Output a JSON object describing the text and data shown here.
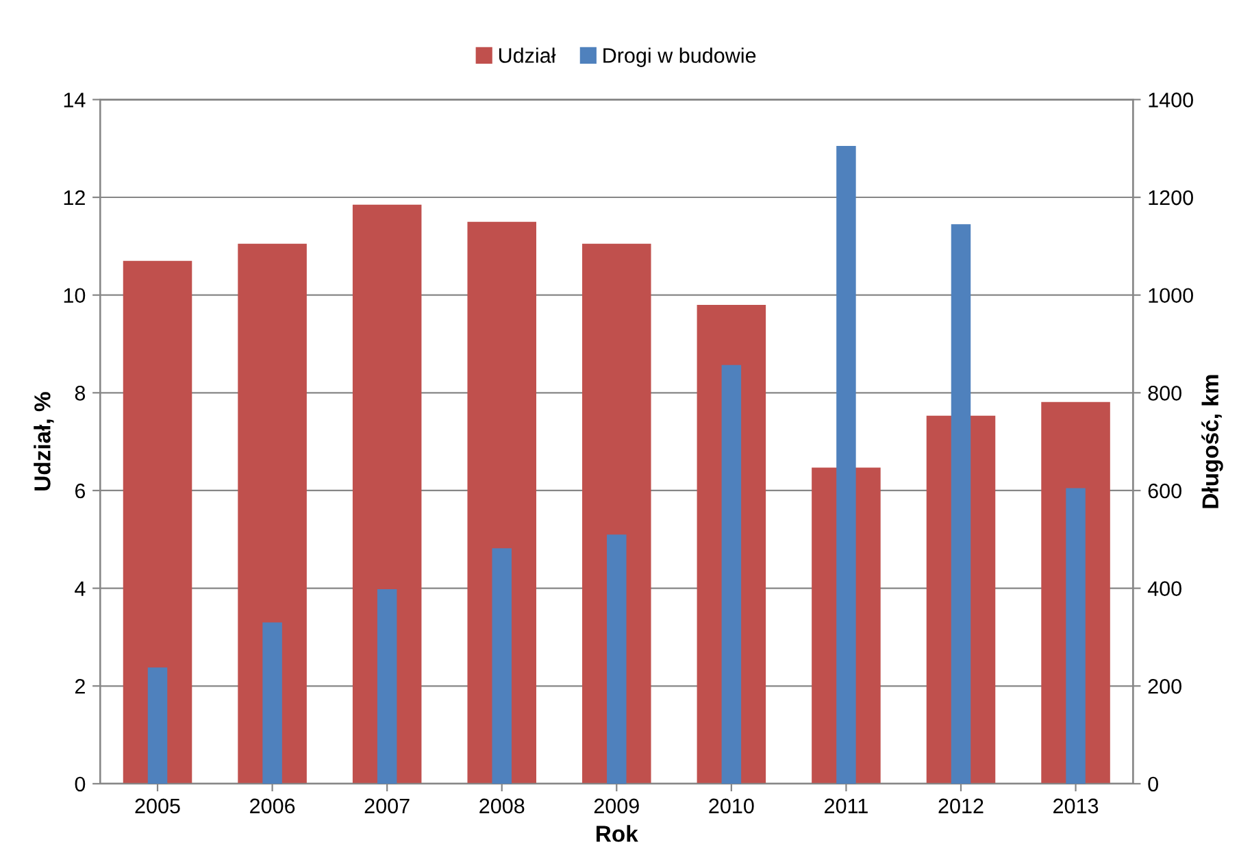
{
  "chart_data": {
    "type": "bar",
    "xlabel": "Rok",
    "ylabel": "Udział, %",
    "y2label": "Długość, km",
    "categories": [
      "2005",
      "2006",
      "2007",
      "2008",
      "2009",
      "2010",
      "2011",
      "2012",
      "2013"
    ],
    "series": [
      {
        "name": "Udział",
        "color": "#c0504d",
        "values": [
          10.7,
          11.05,
          11.85,
          11.5,
          11.05,
          9.8,
          6.47,
          7.53,
          7.81
        ]
      },
      {
        "name": "Drogi w budowie",
        "color": "#4f81bd",
        "axis": "y2",
        "values": [
          238,
          330,
          398,
          482,
          510,
          857,
          1305,
          1145,
          605
        ]
      }
    ],
    "ylim": [
      0,
      14
    ],
    "yticks": [
      0,
      2,
      4,
      6,
      8,
      10,
      12,
      14
    ],
    "y2lim": [
      0,
      1400
    ],
    "y2ticks": [
      0,
      200,
      400,
      600,
      800,
      1000,
      1200,
      1400
    ],
    "grid": "y",
    "legend": "top"
  }
}
